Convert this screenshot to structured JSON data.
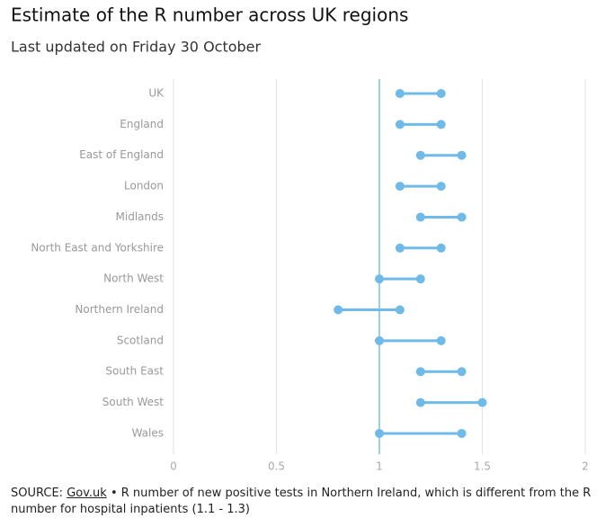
{
  "chart_data": {
    "type": "dumbbell",
    "title": "Estimate of the R number across UK regions",
    "subtitle": "Last updated on Friday 30 October",
    "categories": [
      "UK",
      "England",
      "East of England",
      "London",
      "Midlands",
      "North East and Yorkshire",
      "North West",
      "Northern Ireland",
      "Scotland",
      "South East",
      "South West",
      "Wales"
    ],
    "series": [
      {
        "color": "#6fbae8",
        "values": [
          1.1,
          1.1,
          1.2,
          1.1,
          1.2,
          1.1,
          1.0,
          0.8,
          1.0,
          1.2,
          1.2,
          1.0
        ]
      },
      {
        "color": "#6fbae8",
        "values": [
          1.3,
          1.3,
          1.4,
          1.3,
          1.4,
          1.3,
          1.2,
          1.1,
          1.3,
          1.4,
          1.5,
          1.4
        ]
      }
    ],
    "xlim": [
      0,
      2
    ],
    "xticks": [
      0,
      0.5,
      1,
      1.5,
      2
    ],
    "grid": true,
    "reference_line": {
      "value": 1,
      "color": "#7fbfe0"
    },
    "source": {
      "label": "SOURCE:",
      "link": "Gov.uk",
      "note": "• R number of new positive tests in Northern Ireland, which is different from the R number for hospital inpatients (1.1 - 1.3)"
    }
  }
}
